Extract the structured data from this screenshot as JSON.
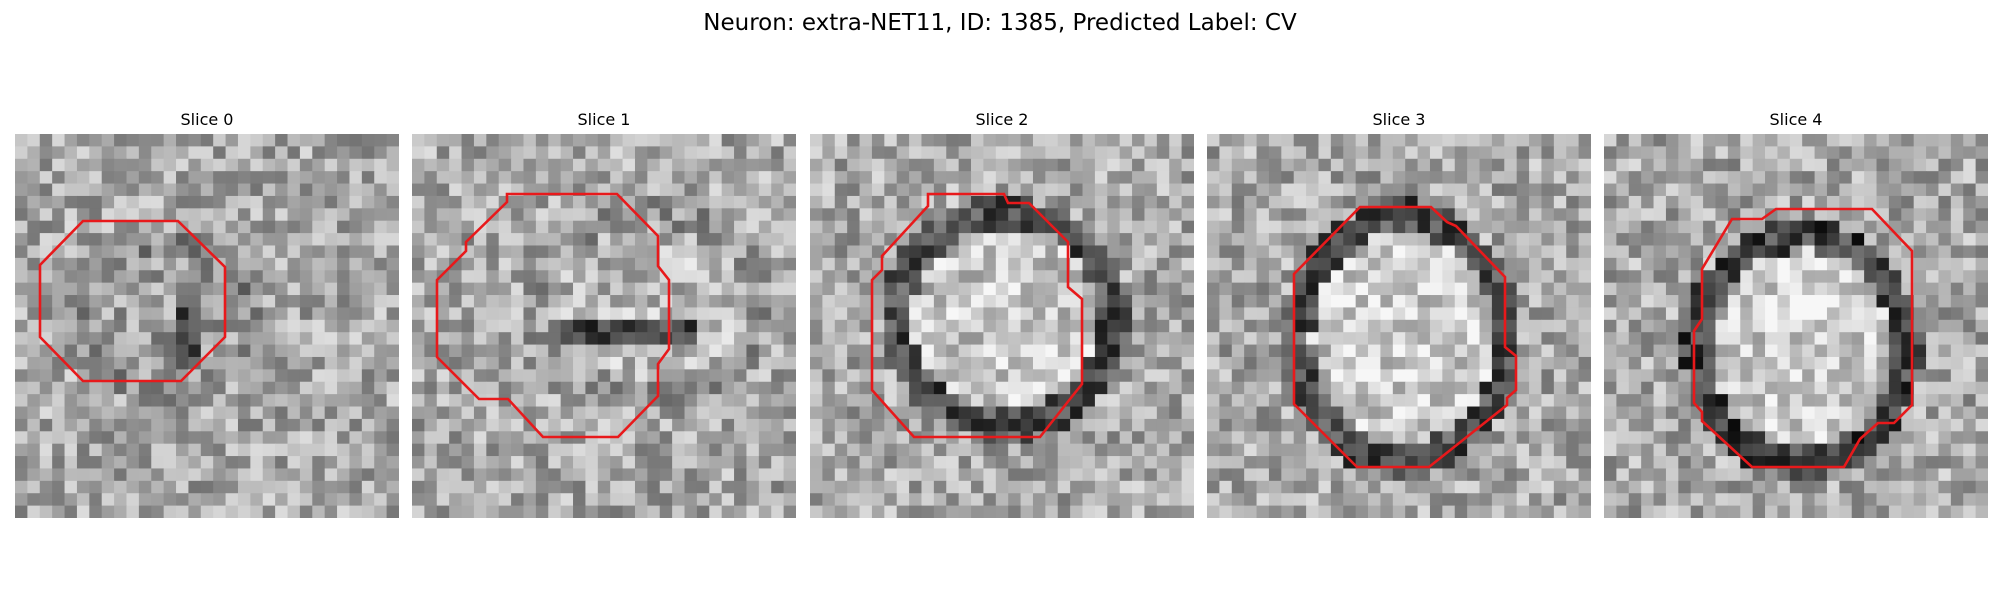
{
  "figure": {
    "title": "Neuron: extra-NET11, ID: 1385, Predicted Label: CV"
  },
  "panels": [
    {
      "label": "Slice 0"
    },
    {
      "label": "Slice 1"
    },
    {
      "label": "Slice 2"
    },
    {
      "label": "Slice 3"
    },
    {
      "label": "Slice 4"
    }
  ],
  "colors": {
    "contour": "#e8191b",
    "background": "#ffffff"
  }
}
